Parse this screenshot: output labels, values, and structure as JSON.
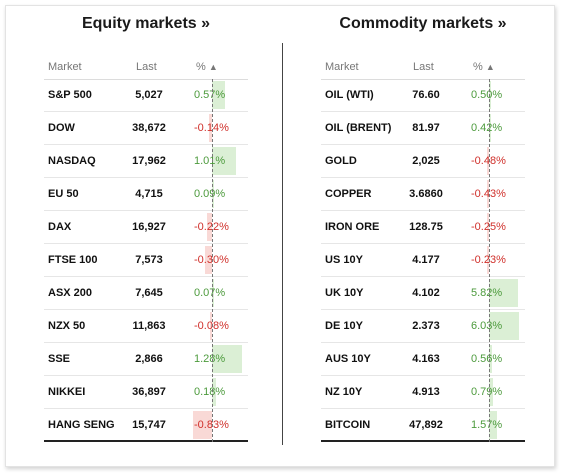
{
  "equity": {
    "title": "Equity markets »",
    "headers": {
      "market": "Market",
      "last": "Last",
      "pct": "%",
      "sort_icon": "▲"
    },
    "max_abs": 1.28,
    "rows": [
      {
        "name": "S&P 500",
        "last": "5,027",
        "pct": "0.57%",
        "value": 0.57
      },
      {
        "name": "DOW",
        "last": "38,672",
        "pct": "-0.14%",
        "value": -0.14
      },
      {
        "name": "NASDAQ",
        "last": "17,962",
        "pct": "1.01%",
        "value": 1.01
      },
      {
        "name": "EU 50",
        "last": "4,715",
        "pct": "0.09%",
        "value": 0.09
      },
      {
        "name": "DAX",
        "last": "16,927",
        "pct": "-0.22%",
        "value": -0.22
      },
      {
        "name": "FTSE 100",
        "last": "7,573",
        "pct": "-0.30%",
        "value": -0.3
      },
      {
        "name": "ASX 200",
        "last": "7,645",
        "pct": "0.07%",
        "value": 0.07
      },
      {
        "name": "NZX 50",
        "last": "11,863",
        "pct": "-0.08%",
        "value": -0.08
      },
      {
        "name": "SSE",
        "last": "2,866",
        "pct": "1.28%",
        "value": 1.28
      },
      {
        "name": "NIKKEI",
        "last": "36,897",
        "pct": "0.18%",
        "value": 0.18
      },
      {
        "name": "HANG SENG",
        "last": "15,747",
        "pct": "-0.83%",
        "value": -0.83
      }
    ]
  },
  "commodity": {
    "title": "Commodity markets »",
    "headers": {
      "market": "Market",
      "last": "Last",
      "pct": "%",
      "sort_icon": "▲"
    },
    "max_abs": 6.03,
    "rows": [
      {
        "name": "OIL (WTI)",
        "last": "76.60",
        "pct": "0.50%",
        "value": 0.5
      },
      {
        "name": "OIL (BRENT)",
        "last": "81.97",
        "pct": "0.42%",
        "value": 0.42
      },
      {
        "name": "GOLD",
        "last": "2,025",
        "pct": "-0.48%",
        "value": -0.48
      },
      {
        "name": "COPPER",
        "last": "3.6860",
        "pct": "-0.43%",
        "value": -0.43
      },
      {
        "name": "IRON ORE",
        "last": "128.75",
        "pct": "-0.25%",
        "value": -0.25
      },
      {
        "name": "US 10Y",
        "last": "4.177",
        "pct": "-0.23%",
        "value": -0.23
      },
      {
        "name": "UK 10Y",
        "last": "4.102",
        "pct": "5.82%",
        "value": 5.82
      },
      {
        "name": "DE 10Y",
        "last": "2.373",
        "pct": "6.03%",
        "value": 6.03
      },
      {
        "name": "AUS 10Y",
        "last": "4.163",
        "pct": "0.56%",
        "value": 0.56
      },
      {
        "name": "NZ 10Y",
        "last": "4.913",
        "pct": "0.79%",
        "value": 0.79
      },
      {
        "name": "BITCOIN",
        "last": "47,892",
        "pct": "1.57%",
        "value": 1.57
      }
    ]
  },
  "colors": {
    "positive": "#4c9a3c",
    "negative": "#d0302b",
    "positive_bg": "#dbefd5",
    "negative_bg": "#f9d9d6"
  }
}
